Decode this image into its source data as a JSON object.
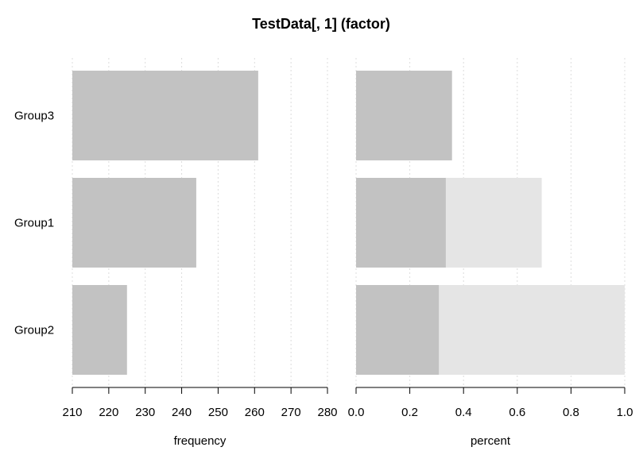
{
  "chart_data": {
    "type": "bar",
    "orientation": "horizontal",
    "title": "TestData[, 1] (factor)",
    "categories": [
      "Group3",
      "Group1",
      "Group2"
    ],
    "grid": true,
    "panels": [
      {
        "name": "frequency",
        "xlabel": "frequency",
        "xlim": [
          210,
          280
        ],
        "ticks": [
          210,
          220,
          230,
          240,
          250,
          260,
          270,
          280
        ],
        "values": [
          261,
          244,
          225
        ],
        "bar_color": "#c2c2c2"
      },
      {
        "name": "percent",
        "xlabel": "percent",
        "xlim": [
          0.0,
          1.0
        ],
        "ticks": [
          "0.0",
          "0.2",
          "0.4",
          "0.6",
          "0.8",
          "1.0"
        ],
        "values": [
          0.357,
          0.334,
          0.308
        ],
        "cumulative": [
          0.357,
          0.691,
          1.0
        ],
        "bar_color": "#c2c2c2",
        "cumulative_color": "#e5e5e5"
      }
    ]
  }
}
